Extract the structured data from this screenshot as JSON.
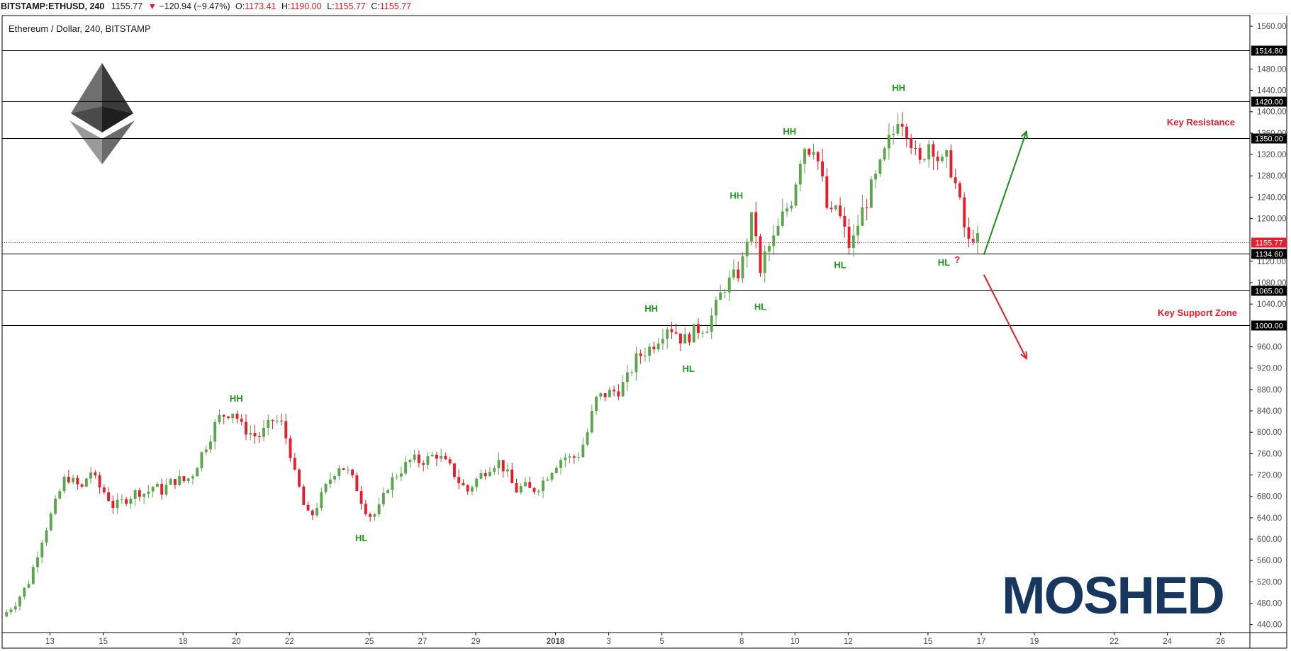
{
  "header": {
    "symbol": "BITSTAMP:ETHUSD, 240",
    "last": "1155.77",
    "change_arrow": "▼",
    "change": "−120.94 (−9.47%)",
    "o_label": "O:",
    "o_value": "1173.41",
    "h_label": "H:",
    "h_value": "1190.00",
    "l_label": "L:",
    "l_value": "1155.77",
    "c_label": "C:",
    "c_value": "1155.77"
  },
  "chart_title": "Ethereum / Dollar, 240, BITSTAMP",
  "watermark": "MOSHED",
  "colors": {
    "up": "#5ba64a",
    "down": "#e81d2b",
    "level_line": "#000000",
    "price_line": "#e81d2b",
    "annotation_green": "#1e9a1e",
    "annotation_red": "#e81d2b",
    "arrow_green": "#1a8f1a",
    "arrow_red": "#e81d2b",
    "watermark": "#17375e",
    "logo_dark": "#2b2b2b",
    "logo_mid": "#6a6a6a",
    "logo_light": "#9b9b9b"
  },
  "chart_data": {
    "type": "candlestick",
    "y_ticks": [
      1560,
      1480,
      1440,
      1400,
      1360,
      1320,
      1280,
      1240,
      1200,
      1120,
      1080,
      1040,
      960,
      920,
      880,
      840,
      800,
      760,
      720,
      680,
      640,
      600,
      560,
      520,
      480,
      440
    ],
    "y_tick_labels": [
      "1560.00",
      "1480.00",
      "1440.00",
      "1400.00",
      "1360.00",
      "1320.00",
      "1280.00",
      "1240.00",
      "1200.00",
      "1120.00",
      "1080.00",
      "1040.00",
      "960.00",
      "920.00",
      "880.00",
      "840.00",
      "800.00",
      "760.00",
      "720.00",
      "680.00",
      "640.00",
      "600.00",
      "560.00",
      "520.00",
      "480.00",
      "440.00"
    ],
    "ylim": [
      425,
      1580
    ],
    "x_labels": [
      "13",
      "15",
      "18",
      "20",
      "22",
      "25",
      "27",
      "29",
      "2018",
      "3",
      "5",
      "8",
      "10",
      "12",
      "15",
      "17",
      "19",
      "22",
      "24",
      "26"
    ],
    "x_label_days": [
      -18.5,
      -16.5,
      -13.5,
      -11.5,
      -9.5,
      -6.5,
      -4.5,
      -2.5,
      0.5,
      2.5,
      4.5,
      7.5,
      9.5,
      11.5,
      14.5,
      16.5,
      18.5,
      21.5,
      23.5,
      25.5
    ],
    "xlim": [
      -20.3,
      26.6
    ],
    "levels": [
      {
        "value": 1514.8,
        "label": "1514.80"
      },
      {
        "value": 1420.0,
        "label": "1420.00"
      },
      {
        "value": 1350.0,
        "label": "1350.00"
      },
      {
        "value": 1134.6,
        "label": "1134.60"
      },
      {
        "value": 1065.0,
        "label": "1065.00"
      },
      {
        "value": 1000.0,
        "label": "1000.00"
      }
    ],
    "current_price": {
      "value": 1155.77,
      "label": "1155.77"
    },
    "key_resistance": {
      "text": "Key Resistance",
      "value": 1385
    },
    "key_support": {
      "text": "Key Support Zone",
      "value": 1032
    },
    "pivot_labels": [
      {
        "text": "HH",
        "day": -11.5,
        "value": 857,
        "color": "green"
      },
      {
        "text": "HL",
        "day": -6.8,
        "value": 596,
        "color": "green"
      },
      {
        "text": "HH",
        "day": 4.1,
        "value": 1026,
        "color": "green"
      },
      {
        "text": "HL",
        "day": 5.5,
        "value": 913,
        "color": "green"
      },
      {
        "text": "HH",
        "day": 7.3,
        "value": 1237,
        "color": "green"
      },
      {
        "text": "HL",
        "day": 8.2,
        "value": 1029,
        "color": "green"
      },
      {
        "text": "HH",
        "day": 9.3,
        "value": 1357,
        "color": "green"
      },
      {
        "text": "HL",
        "day": 11.2,
        "value": 1107,
        "color": "green"
      },
      {
        "text": "HH",
        "day": 13.4,
        "value": 1439,
        "color": "green"
      },
      {
        "text": "HL",
        "day": 15.1,
        "value": 1112,
        "color": "green"
      },
      {
        "text": "?",
        "day": 15.6,
        "value": 1117,
        "color": "red"
      }
    ],
    "arrows": [
      {
        "from_day": 16.6,
        "from_value": 1132,
        "to_day": 18.2,
        "to_value": 1363,
        "color": "green"
      },
      {
        "from_day": 16.6,
        "from_value": 1095,
        "to_day": 18.2,
        "to_value": 938,
        "color": "red"
      }
    ],
    "price_path": [
      [
        -20.3,
        455
      ],
      [
        -19.8,
        480
      ],
      [
        -19.3,
        520
      ],
      [
        -18.8,
        600
      ],
      [
        -18.5,
        640
      ],
      [
        -18.2,
        680
      ],
      [
        -17.9,
        720
      ],
      [
        -17.6,
        705
      ],
      [
        -17.3,
        695
      ],
      [
        -17.0,
        730
      ],
      [
        -16.7,
        700
      ],
      [
        -16.4,
        685
      ],
      [
        -16.1,
        660
      ],
      [
        -15.8,
        670
      ],
      [
        -15.5,
        680
      ],
      [
        -15.2,
        690
      ],
      [
        -14.9,
        685
      ],
      [
        -14.6,
        700
      ],
      [
        -14.3,
        690
      ],
      [
        -14.0,
        705
      ],
      [
        -13.7,
        712
      ],
      [
        -13.4,
        708
      ],
      [
        -13.1,
        725
      ],
      [
        -12.8,
        760
      ],
      [
        -12.5,
        790
      ],
      [
        -12.2,
        825
      ],
      [
        -11.9,
        835
      ],
      [
        -11.6,
        840
      ],
      [
        -11.3,
        810
      ],
      [
        -11.0,
        800
      ],
      [
        -10.7,
        790
      ],
      [
        -10.4,
        805
      ],
      [
        -10.1,
        825
      ],
      [
        -9.8,
        815
      ],
      [
        -9.5,
        770
      ],
      [
        -9.3,
        720
      ],
      [
        -9.1,
        690
      ],
      [
        -8.9,
        650
      ],
      [
        -8.7,
        640
      ],
      [
        -8.5,
        660
      ],
      [
        -8.2,
        690
      ],
      [
        -7.9,
        720
      ],
      [
        -7.6,
        740
      ],
      [
        -7.3,
        725
      ],
      [
        -7.0,
        700
      ],
      [
        -6.7,
        660
      ],
      [
        -6.4,
        640
      ],
      [
        -6.1,
        660
      ],
      [
        -5.8,
        700
      ],
      [
        -5.5,
        720
      ],
      [
        -5.2,
        735
      ],
      [
        -4.9,
        750
      ],
      [
        -4.6,
        745
      ],
      [
        -4.3,
        750
      ],
      [
        -4.0,
        760
      ],
      [
        -3.7,
        745
      ],
      [
        -3.4,
        730
      ],
      [
        -3.1,
        705
      ],
      [
        -2.8,
        690
      ],
      [
        -2.5,
        710
      ],
      [
        -2.2,
        725
      ],
      [
        -1.9,
        740
      ],
      [
        -1.6,
        745
      ],
      [
        -1.3,
        720
      ],
      [
        -1.0,
        690
      ],
      [
        -0.7,
        700
      ],
      [
        -0.4,
        690
      ],
      [
        -0.1,
        700
      ],
      [
        0.2,
        720
      ],
      [
        0.5,
        740
      ],
      [
        0.8,
        755
      ],
      [
        1.1,
        750
      ],
      [
        1.4,
        760
      ],
      [
        1.7,
        800
      ],
      [
        2.0,
        860
      ],
      [
        2.3,
        870
      ],
      [
        2.6,
        875
      ],
      [
        2.9,
        880
      ],
      [
        3.2,
        900
      ],
      [
        3.5,
        935
      ],
      [
        3.8,
        950
      ],
      [
        4.1,
        960
      ],
      [
        4.4,
        980
      ],
      [
        4.7,
        1000
      ],
      [
        5.0,
        990
      ],
      [
        5.3,
        970
      ],
      [
        5.6,
        985
      ],
      [
        5.9,
        995
      ],
      [
        6.2,
        1000
      ],
      [
        6.5,
        1030
      ],
      [
        6.8,
        1070
      ],
      [
        7.1,
        1085
      ],
      [
        7.4,
        1100
      ],
      [
        7.6,
        1130
      ],
      [
        7.8,
        1200
      ],
      [
        8.0,
        1190
      ],
      [
        8.2,
        1090
      ],
      [
        8.4,
        1140
      ],
      [
        8.6,
        1150
      ],
      [
        8.8,
        1170
      ],
      [
        9.0,
        1200
      ],
      [
        9.2,
        1220
      ],
      [
        9.4,
        1240
      ],
      [
        9.6,
        1290
      ],
      [
        9.8,
        1340
      ],
      [
        10.0,
        1330
      ],
      [
        10.2,
        1340
      ],
      [
        10.4,
        1300
      ],
      [
        10.6,
        1250
      ],
      [
        10.8,
        1190
      ],
      [
        11.0,
        1230
      ],
      [
        11.2,
        1200
      ],
      [
        11.4,
        1170
      ],
      [
        11.6,
        1140
      ],
      [
        11.8,
        1180
      ],
      [
        12.0,
        1210
      ],
      [
        12.2,
        1235
      ],
      [
        12.4,
        1260
      ],
      [
        12.6,
        1280
      ],
      [
        12.8,
        1310
      ],
      [
        13.0,
        1340
      ],
      [
        13.2,
        1360
      ],
      [
        13.4,
        1400
      ],
      [
        13.6,
        1380
      ],
      [
        13.8,
        1360
      ],
      [
        14.0,
        1320
      ],
      [
        14.2,
        1300
      ],
      [
        14.4,
        1330
      ],
      [
        14.6,
        1350
      ],
      [
        14.8,
        1320
      ],
      [
        15.0,
        1300
      ],
      [
        15.2,
        1310
      ],
      [
        15.4,
        1290
      ],
      [
        15.6,
        1250
      ],
      [
        15.8,
        1200
      ],
      [
        16.0,
        1150
      ],
      [
        16.2,
        1170
      ],
      [
        16.4,
        1156
      ]
    ]
  }
}
